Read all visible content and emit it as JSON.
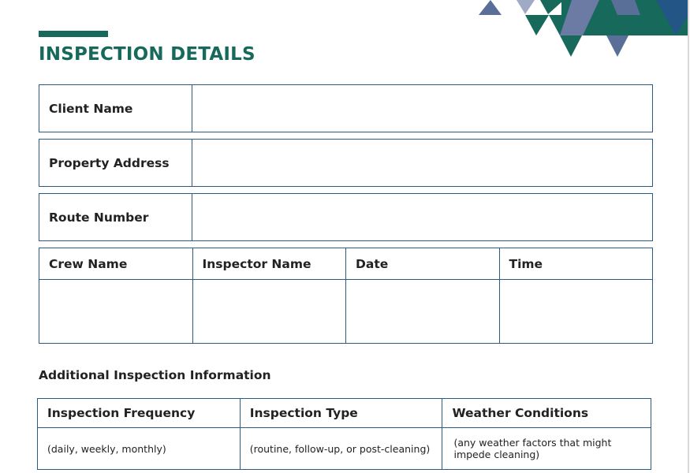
{
  "title": "INSPECTION DETAILS",
  "fields": [
    "Client Name",
    "Property Address",
    "Route Number"
  ],
  "crew_table": {
    "headers": [
      "Crew Name",
      "Inspector Name",
      "Date",
      "Time"
    ]
  },
  "additional": {
    "heading": "Additional Inspection Information",
    "headers": [
      "Inspection Frequency",
      "Inspection Type",
      "Weather Conditions"
    ],
    "hints": [
      "(daily, weekly, monthly)",
      "(routine, follow-up, or post-cleaning)",
      "(any weather factors that might impede cleaning)"
    ]
  },
  "colors": {
    "brand_green": "#17695c",
    "border_blue": "#2b5a86",
    "slate": "#5a6f98",
    "dark_blue": "#235686"
  }
}
